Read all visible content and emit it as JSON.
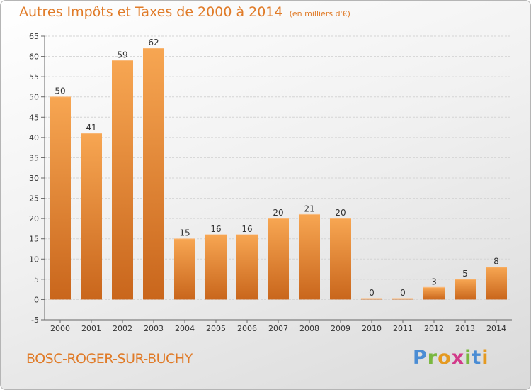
{
  "header": {
    "title": "Autres Impôts et Taxes de 2000 à 2014",
    "unit": "(en milliers d'€)"
  },
  "footer": {
    "commune": "BOSC-ROGER-SUR-BUCHY",
    "brand": "Proxiti"
  },
  "colors": {
    "accent": "#e07b28",
    "bar_light": "#f7a652",
    "bar_dark": "#c9661c"
  },
  "chart_data": {
    "type": "bar",
    "title": "Autres Impôts et Taxes de 2000 à 2014",
    "subtitle": "(en milliers d'€)",
    "categories": [
      "2000",
      "2001",
      "2002",
      "2003",
      "2004",
      "2005",
      "2006",
      "2007",
      "2008",
      "2009",
      "2010",
      "2011",
      "2012",
      "2013",
      "2014"
    ],
    "values": [
      50,
      41,
      59,
      62,
      15,
      16,
      16,
      20,
      21,
      20,
      0,
      0,
      3,
      5,
      8
    ],
    "ylim": [
      -5,
      65
    ],
    "yticks": [
      -5,
      0,
      5,
      10,
      15,
      20,
      25,
      30,
      35,
      40,
      45,
      50,
      55,
      60,
      65
    ],
    "grid": true,
    "data_labels": true
  }
}
